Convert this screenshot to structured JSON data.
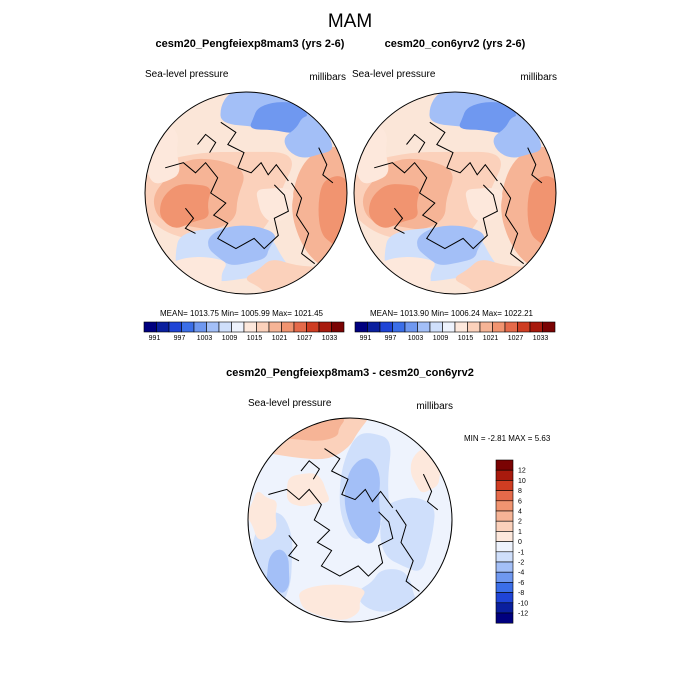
{
  "chart_data": {
    "figure_title": "MAM",
    "palette": [
      "#00007f",
      "#0a1f9e",
      "#1f44d6",
      "#3b6ee8",
      "#6f98f0",
      "#a3bff7",
      "#cfdffb",
      "#eef3fd",
      "#fde8dc",
      "#fbd1bb",
      "#f6b496",
      "#f19470",
      "#e56a4a",
      "#cf3d22",
      "#a81a0d",
      "#7a0303"
    ],
    "panels": [
      {
        "id": "panel-a",
        "type": "heatmap",
        "subtype": "polar-stereographic-contour",
        "title": "cesm20_Pengfeiexp8mam3 (yrs 2-6)",
        "left_label": "Sea-level pressure",
        "right_label": "millibars",
        "stats": {
          "mean": "1013.75",
          "min": "1005.99",
          "max": "1021.45"
        },
        "stats_text": "MEAN= 1013.75  Min= 1005.99  Max= 1021.45",
        "colorbar_labels": [
          "991",
          "997",
          "1003",
          "1009",
          "1015",
          "1021",
          "1027",
          "1033"
        ]
      },
      {
        "id": "panel-b",
        "type": "heatmap",
        "subtype": "polar-stereographic-contour",
        "title": "cesm20_con6yrv2 (yrs 2-6)",
        "left_label": "Sea-level pressure",
        "right_label": "millibars",
        "stats": {
          "mean": "1013.90",
          "min": "1006.24",
          "max": "1022.21"
        },
        "stats_text": "MEAN= 1013.90  Min= 1006.24  Max= 1022.21",
        "colorbar_labels": [
          "991",
          "997",
          "1003",
          "1009",
          "1015",
          "1021",
          "1027",
          "1033"
        ]
      },
      {
        "id": "panel-diff",
        "type": "heatmap",
        "subtype": "polar-stereographic-contour",
        "title": "cesm20_Pengfeiexp8mam3 - cesm20_con6yrv2",
        "left_label": "Sea-level pressure",
        "right_label": "millibars",
        "stats": {
          "min": "-2.81",
          "max": "5.63"
        },
        "stats_text": "MIN =  -2.81 MAX =   5.63",
        "colorbar_labels": [
          "12",
          "10",
          "8",
          "6",
          "4",
          "2",
          "1",
          "0",
          "-1",
          "-2",
          "-4",
          "-6",
          "-8",
          "-10",
          "-12"
        ]
      }
    ]
  }
}
